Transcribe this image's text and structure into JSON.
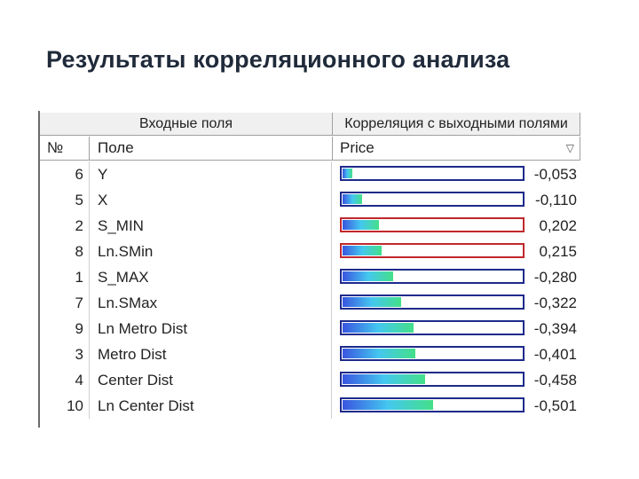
{
  "title": "Результаты корреляционного анализа",
  "grid": {
    "group_headers": {
      "inputs": "Входные поля",
      "correlation": "Корреляция с выходными полями"
    },
    "column_headers": {
      "num": "№",
      "field": "Поле",
      "price": "Price"
    },
    "rows": [
      {
        "num": "6",
        "field": "Y",
        "value": "-0,053",
        "corr": -0.053
      },
      {
        "num": "5",
        "field": "X",
        "value": "-0,110",
        "corr": -0.11
      },
      {
        "num": "2",
        "field": "S_MIN",
        "value": "0,202",
        "corr": 0.202
      },
      {
        "num": "8",
        "field": "Ln.SMin",
        "value": "0,215",
        "corr": 0.215
      },
      {
        "num": "1",
        "field": "S_MAX",
        "value": "-0,280",
        "corr": -0.28
      },
      {
        "num": "7",
        "field": "Ln.SMax",
        "value": "-0,322",
        "corr": -0.322
      },
      {
        "num": "9",
        "field": "Ln Metro Dist",
        "value": "-0,394",
        "corr": -0.394
      },
      {
        "num": "3",
        "field": "Metro Dist",
        "value": "-0,401",
        "corr": -0.401
      },
      {
        "num": "4",
        "field": "Center Dist",
        "value": "-0,458",
        "corr": -0.458
      },
      {
        "num": "10",
        "field": "Ln Center Dist",
        "value": "-0,501",
        "corr": -0.501
      }
    ]
  },
  "colors": {
    "negative_border": "#1d2a8a",
    "positive_border": "#c0282c"
  }
}
